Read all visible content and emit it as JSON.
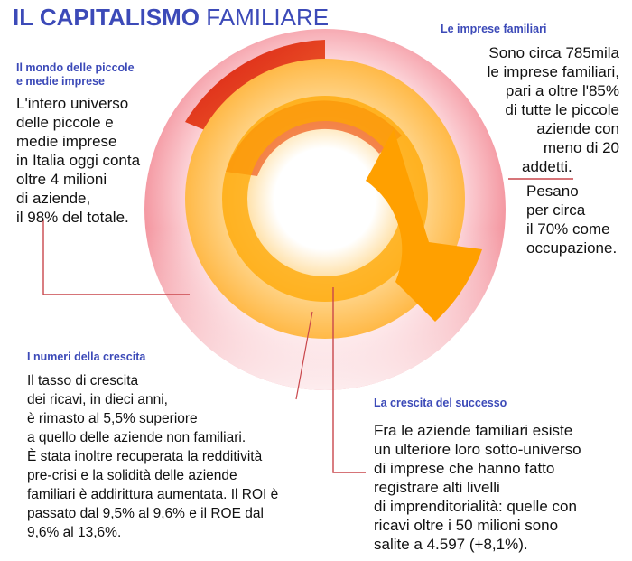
{
  "title": {
    "bold": "IL CAPITALISMO",
    "light": "FAMILIARE"
  },
  "colors": {
    "title": "#3c4ab8",
    "outer_ring": "#e1424f",
    "inner_red": "#e63a10",
    "orange": "#ffa700",
    "light_orange": "#ffd27a",
    "leader_line": "#c9474c"
  },
  "sections": {
    "pmi": {
      "heading": [
        "Il mondo delle piccole",
        "e medie imprese"
      ],
      "lines": [
        "L'intero universo",
        "delle piccole e",
        "medie imprese",
        "in Italia oggi conta",
        "oltre 4 milioni",
        "di aziende,",
        "il 98% del totale."
      ]
    },
    "familiari": {
      "heading": [
        "Le imprese familiari"
      ],
      "lines": [
        "Sono circa 785mila",
        "le imprese familiari,",
        "pari a oltre l'85%",
        "di tutte le piccole",
        "aziende con",
        "meno di 20",
        "addetti.",
        "Pesano",
        "per circa",
        "il 70% come",
        "occupazione."
      ]
    },
    "numeri": {
      "heading": [
        "I numeri della crescita"
      ],
      "lines": [
        "Il tasso di crescita",
        "dei ricavi, in dieci anni,",
        "è rimasto al 5,5% superiore",
        "a quello delle aziende non familiari.",
        "È stata inoltre recuperata la redditività",
        "pre-crisi e la solidità delle aziende",
        "familiari è addirittura aumentata. Il ROI è",
        "passato dal 9,5% al 9,6% e il ROE dal",
        "9,6% al 13,6%."
      ]
    },
    "successo": {
      "heading": [
        "La crescita del successo"
      ],
      "lines": [
        "Fra le aziende familiari esiste",
        "un ulteriore loro sotto-universo",
        "di imprese che hanno fatto",
        "registrare alti livelli",
        "di imprenditorialità: quelle con",
        "ricavi oltre i 50 milioni sono",
        "salite a 4.597 (+8,1%)."
      ]
    }
  }
}
